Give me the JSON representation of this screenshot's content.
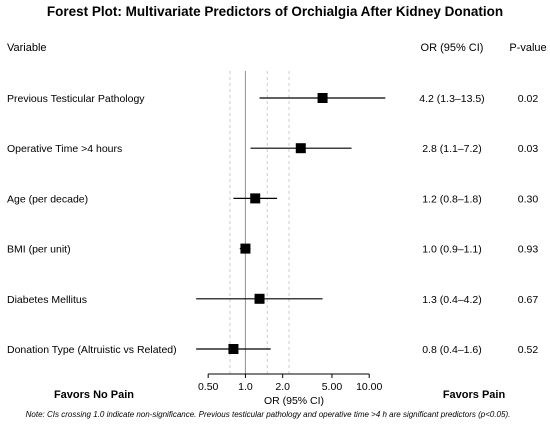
{
  "title": "Forest Plot: Multivariate Predictors of Orchialgia After Kidney Donation",
  "headers": {
    "variable": "Variable",
    "or_ci": "OR (95% CI)",
    "pvalue": "P-value"
  },
  "favors": {
    "left": "Favors No Pain",
    "right": "Favors Pain"
  },
  "note": "Note: CIs crossing 1.0 indicate non-significance. Previous testicular pathology and operative time >4 h are significant predictors (p<0.05).",
  "chart_data": {
    "type": "forest",
    "xscale": "log",
    "xlabel": "OR (95% CI)",
    "xlim": [
      0.35,
      15
    ],
    "xticks": [
      0.5,
      1.0,
      2.0,
      5.0,
      10.0
    ],
    "xtick_labels": [
      "0.50",
      "1.0",
      "2.0",
      "5.00",
      "10.00"
    ],
    "reference_line": 1.0,
    "dotted_lines": [
      0.75,
      1.5,
      2.25
    ],
    "rows": [
      {
        "variable": "Previous Testicular Pathology",
        "or": 4.2,
        "lo": 1.3,
        "hi": 13.5,
        "or_text": "4.2 (1.3–13.5)",
        "p": "0.02"
      },
      {
        "variable": "Operative Time >4 hours",
        "or": 2.8,
        "lo": 1.1,
        "hi": 7.2,
        "or_text": "2.8 (1.1–7.2)",
        "p": "0.03"
      },
      {
        "variable": "Age (per decade)",
        "or": 1.2,
        "lo": 0.8,
        "hi": 1.8,
        "or_text": "1.2 (0.8–1.8)",
        "p": "0.30"
      },
      {
        "variable": "BMI (per unit)",
        "or": 1.0,
        "lo": 0.9,
        "hi": 1.1,
        "or_text": "1.0 (0.9–1.1)",
        "p": "0.93"
      },
      {
        "variable": "Diabetes Mellitus",
        "or": 1.3,
        "lo": 0.4,
        "hi": 4.2,
        "or_text": "1.3 (0.4–4.2)",
        "p": "0.67"
      },
      {
        "variable": "Donation Type (Altruistic vs Related)",
        "or": 0.8,
        "lo": 0.4,
        "hi": 1.6,
        "or_text": "0.8 (0.4–1.6)",
        "p": "0.52"
      }
    ]
  }
}
